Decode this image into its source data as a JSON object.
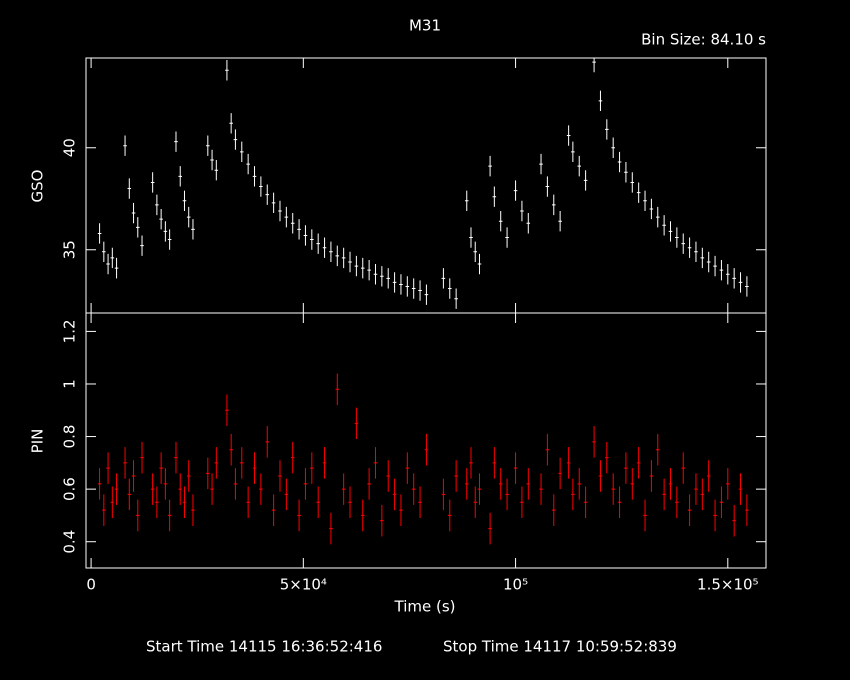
{
  "chart_data": [
    {
      "type": "errorbar",
      "title": "M31",
      "subtitle": "Bin Size: 84.10 s",
      "ylabel": "GSO",
      "color": "#ffffff",
      "x": [
        2000,
        3000,
        4000,
        5000,
        6000,
        8000,
        9000,
        10000,
        11000,
        12000,
        14500,
        15500,
        16500,
        17500,
        18500,
        20000,
        21000,
        22000,
        23000,
        24000,
        27500,
        28500,
        29500,
        32000,
        33000,
        34000,
        35500,
        37000,
        38500,
        40000,
        41500,
        43000,
        44500,
        46000,
        47500,
        49000,
        50500,
        52000,
        53500,
        55000,
        56500,
        58000,
        59500,
        61000,
        62500,
        64000,
        65500,
        67000,
        68500,
        70000,
        71500,
        73000,
        74500,
        76000,
        77500,
        79000,
        83000,
        84500,
        86000,
        88500,
        89500,
        90500,
        91500,
        94000,
        95000,
        96500,
        98000,
        100000,
        101500,
        103000,
        106000,
        107500,
        109000,
        110500,
        112500,
        113500,
        115000,
        116500,
        118500,
        120000,
        121500,
        123000,
        124500,
        126000,
        127500,
        129000,
        130500,
        132000,
        133500,
        135000,
        136500,
        138000,
        139500,
        141000,
        142500,
        144000,
        145500,
        147000,
        148500,
        150000,
        151500,
        153000,
        154500
      ],
      "values": [
        35.8,
        34.9,
        34.3,
        34.6,
        34.1,
        40.1,
        38,
        36.8,
        36.1,
        35.2,
        38.3,
        37.2,
        36.5,
        35.9,
        35.5,
        40.3,
        38.6,
        37.4,
        36.6,
        36,
        40.1,
        39.4,
        38.9,
        43.8,
        41.2,
        40.4,
        39.8,
        39.2,
        38.6,
        38.1,
        37.7,
        37.3,
        36.9,
        36.6,
        36.3,
        36,
        35.7,
        35.5,
        35.3,
        35.1,
        34.9,
        34.7,
        34.6,
        34.4,
        34.2,
        34.1,
        34,
        33.8,
        33.7,
        33.6,
        33.4,
        33.3,
        33.2,
        33.1,
        33,
        32.8,
        33.6,
        33.1,
        32.6,
        37.4,
        35.6,
        34.9,
        34.3,
        39.1,
        37.6,
        36.4,
        35.6,
        37.9,
        36.9,
        36.3,
        39.2,
        38.1,
        37.2,
        36.4,
        40.6,
        39.8,
        39.1,
        38.4,
        44.2,
        42.3,
        40.9,
        40,
        39.3,
        38.8,
        38.3,
        37.8,
        37.4,
        37,
        36.6,
        36.2,
        35.9,
        35.6,
        35.3,
        35.1,
        34.9,
        34.6,
        34.4,
        34.2,
        34,
        33.8,
        33.6,
        33.4,
        33.2
      ],
      "error": 0.5,
      "ylim": [
        31.9,
        44.4
      ],
      "yticks": [
        35,
        40
      ]
    },
    {
      "type": "errorbar",
      "ylabel": "PIN",
      "xlabel": "Time (s)",
      "color": "#ff0000",
      "start_time": "Start Time 14115 16:36:52:416",
      "stop_time": "Stop Time 14117 10:59:52:839",
      "x": [
        2000,
        3000,
        4000,
        5000,
        6000,
        8000,
        9000,
        10000,
        11000,
        12000,
        14500,
        15500,
        16500,
        17500,
        18500,
        20000,
        21000,
        22000,
        23000,
        24000,
        27500,
        28500,
        29500,
        32000,
        33000,
        34000,
        35500,
        37000,
        38500,
        40000,
        41500,
        43000,
        44500,
        46000,
        47500,
        49000,
        50500,
        52000,
        53500,
        55000,
        56500,
        58000,
        59500,
        61000,
        62500,
        64000,
        65500,
        67000,
        68500,
        70000,
        71500,
        73000,
        74500,
        76000,
        77500,
        79000,
        83000,
        84500,
        86000,
        88500,
        89500,
        90500,
        91500,
        94000,
        95000,
        96500,
        98000,
        100000,
        101500,
        103000,
        106000,
        107500,
        109000,
        110500,
        112500,
        113500,
        115000,
        116500,
        118500,
        120000,
        121500,
        123000,
        124500,
        126000,
        127500,
        129000,
        130500,
        132000,
        133500,
        135000,
        136500,
        138000,
        139500,
        141000,
        142500,
        144000,
        145500,
        147000,
        148500,
        150000,
        151500,
        153000,
        154500
      ],
      "values": [
        0.62,
        0.52,
        0.68,
        0.55,
        0.6,
        0.7,
        0.58,
        0.65,
        0.5,
        0.72,
        0.6,
        0.55,
        0.68,
        0.62,
        0.5,
        0.72,
        0.6,
        0.55,
        0.65,
        0.52,
        0.66,
        0.6,
        0.7,
        0.9,
        0.75,
        0.62,
        0.7,
        0.55,
        0.68,
        0.6,
        0.78,
        0.52,
        0.65,
        0.58,
        0.72,
        0.5,
        0.62,
        0.68,
        0.55,
        0.7,
        0.45,
        0.98,
        0.6,
        0.55,
        0.85,
        0.5,
        0.62,
        0.7,
        0.48,
        0.65,
        0.58,
        0.52,
        0.68,
        0.6,
        0.55,
        0.75,
        0.58,
        0.5,
        0.65,
        0.62,
        0.7,
        0.55,
        0.6,
        0.45,
        0.7,
        0.62,
        0.58,
        0.68,
        0.55,
        0.62,
        0.6,
        0.75,
        0.52,
        0.66,
        0.7,
        0.58,
        0.62,
        0.55,
        0.78,
        0.65,
        0.72,
        0.6,
        0.55,
        0.68,
        0.62,
        0.7,
        0.5,
        0.65,
        0.75,
        0.58,
        0.62,
        0.55,
        0.68,
        0.52,
        0.6,
        0.58,
        0.65,
        0.5,
        0.55,
        0.62,
        0.48,
        0.6,
        0.52
      ],
      "error": 0.06,
      "ylim": [
        0.3,
        1.27
      ],
      "yticks": [
        0.4,
        0.6,
        0.8,
        1,
        1.2
      ],
      "xlim": [
        -1200,
        159000
      ],
      "xticks": [
        0,
        {
          "value": 50000,
          "label": "5×10⁴"
        },
        {
          "value": 100000,
          "label": "10⁵"
        },
        {
          "value": 150000,
          "label": "1.5×10⁵"
        }
      ]
    }
  ]
}
